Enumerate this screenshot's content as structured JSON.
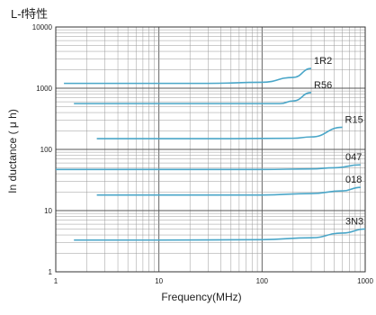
{
  "chart_data": {
    "type": "line",
    "title": "L-f特性",
    "xlabel": "Frequency(MHz)",
    "ylabel": "In ductance ( μ h)",
    "x_scale": "log",
    "y_scale": "log",
    "xlim": [
      1,
      1000
    ],
    "ylim": [
      1,
      10000
    ],
    "x_ticks": [
      "1",
      "10",
      "100",
      "1000"
    ],
    "y_ticks": [
      "1",
      "10",
      "100",
      "1000",
      "10000"
    ],
    "grid": true,
    "series_color": "#4aa6c8",
    "series": [
      {
        "name": "1R2",
        "x": [
          1.2,
          10,
          30,
          100,
          200,
          300
        ],
        "y": [
          1200,
          1200,
          1200,
          1250,
          1500,
          2100
        ]
      },
      {
        "name": "R56",
        "x": [
          1.5,
          10,
          50,
          150,
          200,
          300
        ],
        "y": [
          560,
          560,
          560,
          560,
          620,
          850
        ]
      },
      {
        "name": "R15",
        "x": [
          2.5,
          10,
          50,
          200,
          300,
          600
        ],
        "y": [
          150,
          150,
          150,
          152,
          160,
          230
        ]
      },
      {
        "name": "047",
        "x": [
          1.0,
          10,
          100,
          300,
          500,
          900
        ],
        "y": [
          47,
          47,
          47,
          48,
          50,
          56
        ]
      },
      {
        "name": "018",
        "x": [
          2.5,
          10,
          100,
          300,
          600,
          900
        ],
        "y": [
          18,
          18,
          18,
          19,
          21,
          24
        ]
      },
      {
        "name": "3N3",
        "x": [
          1.5,
          10,
          100,
          300,
          600,
          1000
        ],
        "y": [
          3.3,
          3.3,
          3.35,
          3.6,
          4.3,
          5.0
        ]
      }
    ]
  }
}
